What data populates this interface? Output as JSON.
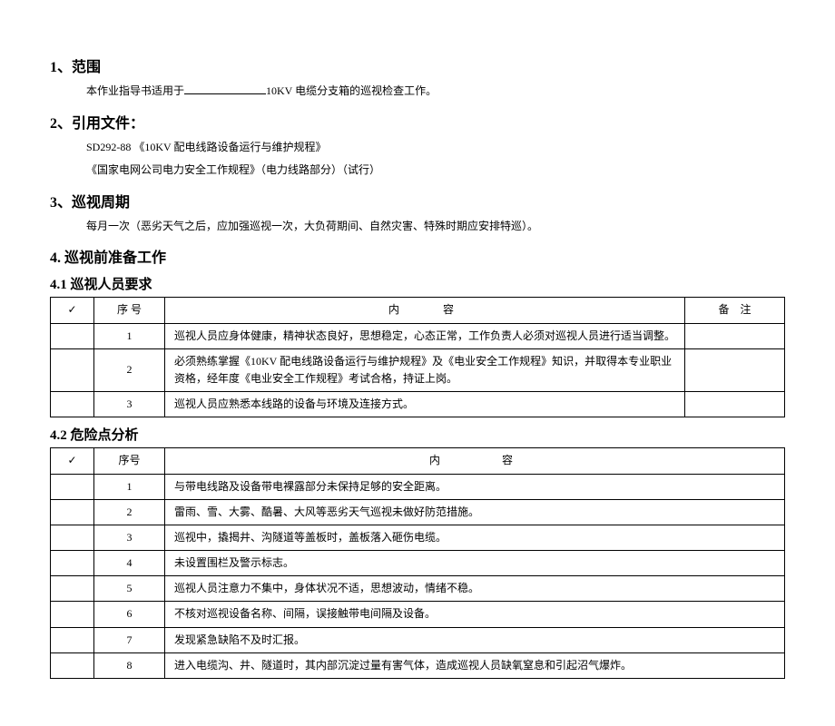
{
  "section1": {
    "heading": "1、范围",
    "text_prefix": "本作业指导书适用于",
    "text_suffix": "10KV 电缆分支箱的巡视检查工作。"
  },
  "section2": {
    "heading": "2、引用文件：",
    "line1": "SD292-88 《10KV 配电线路设备运行与维护规程》",
    "line2": "《国家电网公司电力安全工作规程》（电力线路部分）（试行）"
  },
  "section3": {
    "heading": "3、巡视周期",
    "text": "每月一次（恶劣天气之后，应加强巡视一次，大负荷期间、自然灾害、特殊时期应安排特巡）。"
  },
  "section4": {
    "heading": "4. 巡视前准备工作"
  },
  "section41": {
    "heading": "4.1 巡视人员要求",
    "headers": {
      "check": "✓",
      "num": "序 号",
      "content": "内　　容",
      "remark": "备　注"
    },
    "rows": [
      {
        "num": "1",
        "content": "巡视人员应身体健康，精神状态良好，思想稳定，心态正常，工作负责人必须对巡视人员进行适当调整。",
        "remark": ""
      },
      {
        "num": "2",
        "content": "必须熟练掌握《10KV 配电线路设备运行与维护规程》及《电业安全工作规程》知识，并取得本专业职业资格，经年度《电业安全工作规程》考试合格，持证上岗。",
        "remark": ""
      },
      {
        "num": "3",
        "content": "巡视人员应熟悉本线路的设备与环境及连接方式。",
        "remark": ""
      }
    ]
  },
  "section42": {
    "heading": "4.2 危险点分析",
    "headers": {
      "check": "✓",
      "num": "序号",
      "content": "内　　　容"
    },
    "rows": [
      {
        "num": "1",
        "content": "与带电线路及设备带电裸露部分未保持足够的安全距离。"
      },
      {
        "num": "2",
        "content": "雷雨、雪、大雾、酷暑、大风等恶劣天气巡视未做好防范措施。"
      },
      {
        "num": "3",
        "content": "巡视中，撬揭井、沟隧道等盖板时，盖板落入砸伤电缆。"
      },
      {
        "num": "4",
        "content": "未设置围栏及警示标志。"
      },
      {
        "num": "5",
        "content": "巡视人员注意力不集中，身体状况不适，思想波动，情绪不稳。"
      },
      {
        "num": "6",
        "content": "不核对巡视设备名称、间隔，误接触带电间隔及设备。"
      },
      {
        "num": "7",
        "content": "发现紧急缺陷不及时汇报。"
      },
      {
        "num": "8",
        "content": "进入电缆沟、井、隧道时，其内部沉淀过量有害气体，造成巡视人员缺氧窒息和引起沼气爆炸。"
      }
    ]
  }
}
